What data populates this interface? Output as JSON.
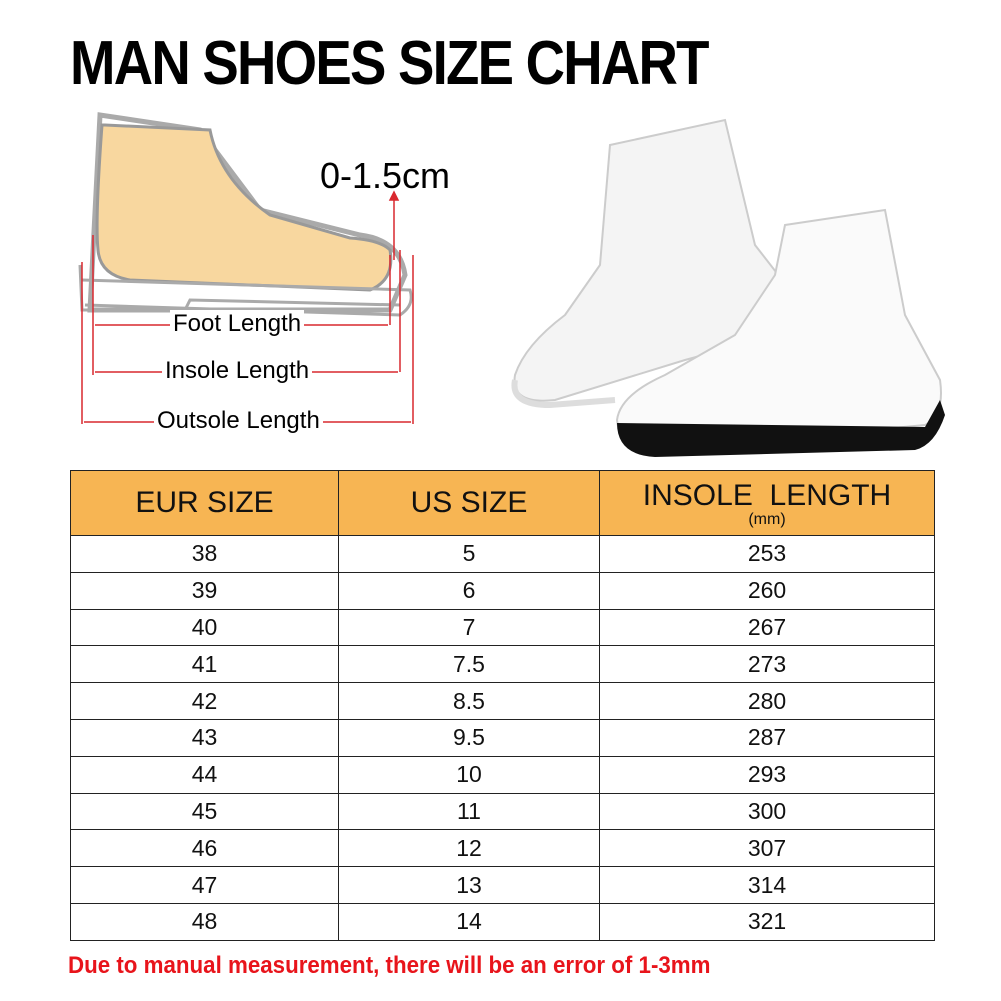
{
  "title": "MAN SHOES SIZE CHART",
  "diagram": {
    "gap_label": "0-1.5cm",
    "foot_length": "Foot Length",
    "insole_length": "Insole Length",
    "outsole_length": "Outsole Length",
    "foot_color": "#f8d79f",
    "arrow_color": "#d9282f"
  },
  "table": {
    "header_color": "#f7b553",
    "headers": [
      "EUR SIZE",
      "US SIZE",
      "INSOLE  LENGTH"
    ],
    "header_unit": "(mm)",
    "rows": [
      [
        "38",
        "5",
        "253"
      ],
      [
        "39",
        "6",
        "260"
      ],
      [
        "40",
        "7",
        "267"
      ],
      [
        "41",
        "7.5",
        "273"
      ],
      [
        "42",
        "8.5",
        "280"
      ],
      [
        "43",
        "9.5",
        "287"
      ],
      [
        "44",
        "10",
        "293"
      ],
      [
        "45",
        "11",
        "300"
      ],
      [
        "46",
        "12",
        "307"
      ],
      [
        "47",
        "13",
        "314"
      ],
      [
        "48",
        "14",
        "321"
      ]
    ]
  },
  "note": "Due to manual measurement, there will be an error of 1-3mm",
  "note_color": "#e8141b"
}
